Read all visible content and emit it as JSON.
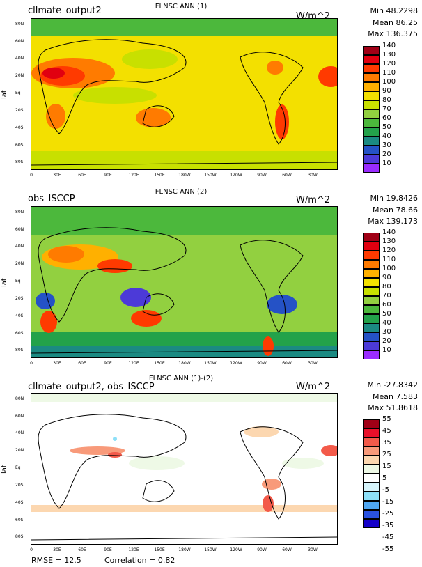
{
  "y_axis_title": "lat",
  "lon_labels": [
    "0",
    "30E",
    "60E",
    "90E",
    "120E",
    "150E",
    "180W",
    "150W",
    "120W",
    "90W",
    "60W",
    "30W"
  ],
  "lat_labels": [
    "80N",
    "60N",
    "40N",
    "20N",
    "Eq",
    "20S",
    "40S",
    "60S",
    "80S"
  ],
  "panels": [
    {
      "case": "cllmate_output2",
      "title": "FLNSC ANN (1)",
      "units": "W/m^2",
      "min": "Min 48.2298",
      "mean": "Mean 86.25",
      "max": "Max 136.375",
      "colorbar_labels": [
        "140",
        "130",
        "120",
        "110",
        "100",
        "90",
        "80",
        "70",
        "60",
        "50",
        "40",
        "30",
        "20",
        "10"
      ],
      "colorbar_colors": [
        "#a00016",
        "#e10010",
        "#ff3a00",
        "#ff7b00",
        "#ffb000",
        "#f3e000",
        "#c8e000",
        "#92d040",
        "#4cb83c",
        "#23a24a",
        "#1b8a82",
        "#2552c6",
        "#4c3ad8",
        "#9a2cff"
      ]
    },
    {
      "case": "obs_ISCCP",
      "title": "FLNSC ANN (2)",
      "units": "W/m^2",
      "min": "Min 19.8426",
      "mean": "Mean 78.66",
      "max": "Max 139.173",
      "colorbar_labels": [
        "140",
        "130",
        "120",
        "110",
        "100",
        "90",
        "80",
        "70",
        "60",
        "50",
        "40",
        "30",
        "20",
        "10"
      ],
      "colorbar_colors": [
        "#a00016",
        "#e10010",
        "#ff3a00",
        "#ff7b00",
        "#ffb000",
        "#f3e000",
        "#c8e000",
        "#92d040",
        "#4cb83c",
        "#23a24a",
        "#1b8a82",
        "#2552c6",
        "#4c3ad8",
        "#9a2cff"
      ]
    },
    {
      "case": "cllmate_output2, obs_ISCCP",
      "title": "FLNSC ANN (1)-(2)",
      "units": "W/m^2",
      "min": "Min -27.8342",
      "mean": "Mean 7.583",
      "max": "Max 51.8618",
      "colorbar_labels": [
        "55",
        "45",
        "35",
        "25",
        "15",
        "5",
        "-5",
        "-15",
        "-25",
        "-35",
        "-45",
        "-55"
      ],
      "colorbar_colors": [
        "#a00016",
        "#e8102a",
        "#f35a4a",
        "#f89a7a",
        "#fcd7b0",
        "#eef9e6",
        "#ffffff",
        "#d6f4fb",
        "#8de0f8",
        "#50a6f0",
        "#2a52e0",
        "#1400c8"
      ]
    }
  ],
  "footer": {
    "rmse": "RMSE = 12.5",
    "correlation": "Correlation = 0.82"
  },
  "colors": {
    "land_outline": "#000000",
    "background": "#ffffff"
  }
}
